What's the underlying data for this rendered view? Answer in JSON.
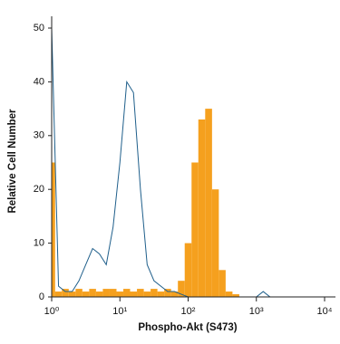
{
  "chart_data": {
    "type": "histogram",
    "xlabel": "Phospho-Akt (S473)",
    "ylabel": "Relative Cell Number",
    "log_x": true,
    "x": [
      1,
      1.26,
      1.58,
      2,
      2.51,
      3.16,
      3.98,
      5.01,
      6.31,
      7.94,
      10,
      12.6,
      15.8,
      20,
      25.1,
      31.6,
      39.8,
      50.1,
      63.1,
      79.4,
      100,
      126,
      158,
      200,
      251,
      316,
      398,
      501,
      631,
      794,
      1000,
      1259,
      1585,
      1995,
      2512,
      3162,
      3981,
      5012,
      6310,
      7943,
      10000
    ],
    "series": [
      {
        "color": "#f5a01e",
        "fill": true,
        "values": [
          25,
          1,
          1.5,
          1,
          1.5,
          1,
          1.5,
          1,
          1.5,
          1.5,
          1,
          1.5,
          1,
          1.5,
          1,
          1.5,
          1,
          1.5,
          1,
          3,
          10,
          25,
          33,
          35,
          20,
          5,
          1,
          0.5,
          0,
          0,
          0,
          0,
          0,
          0,
          0,
          0,
          0,
          0,
          0,
          0,
          0
        ]
      },
      {
        "color": "#1f5f8b",
        "fill": false,
        "values": [
          50,
          2,
          1,
          1,
          3,
          6,
          9,
          8,
          6,
          13,
          25,
          40,
          38,
          20,
          6,
          3,
          2,
          1,
          1,
          0.5,
          0,
          0,
          0,
          0,
          0,
          0,
          0,
          0,
          0,
          0,
          0,
          1,
          0,
          0,
          0,
          0,
          0,
          0,
          0,
          0,
          0
        ]
      }
    ],
    "xlim": [
      1,
      10000
    ],
    "xticks": [
      {
        "value": 1,
        "label": "10⁰"
      },
      {
        "value": 10,
        "label": "10¹"
      },
      {
        "value": 100,
        "label": "10²"
      },
      {
        "value": 1000,
        "label": "10³"
      },
      {
        "value": 10000,
        "label": "10⁴"
      }
    ],
    "ylim": [
      0,
      50
    ],
    "yticks": [
      0,
      10,
      20,
      30,
      40,
      50
    ]
  }
}
